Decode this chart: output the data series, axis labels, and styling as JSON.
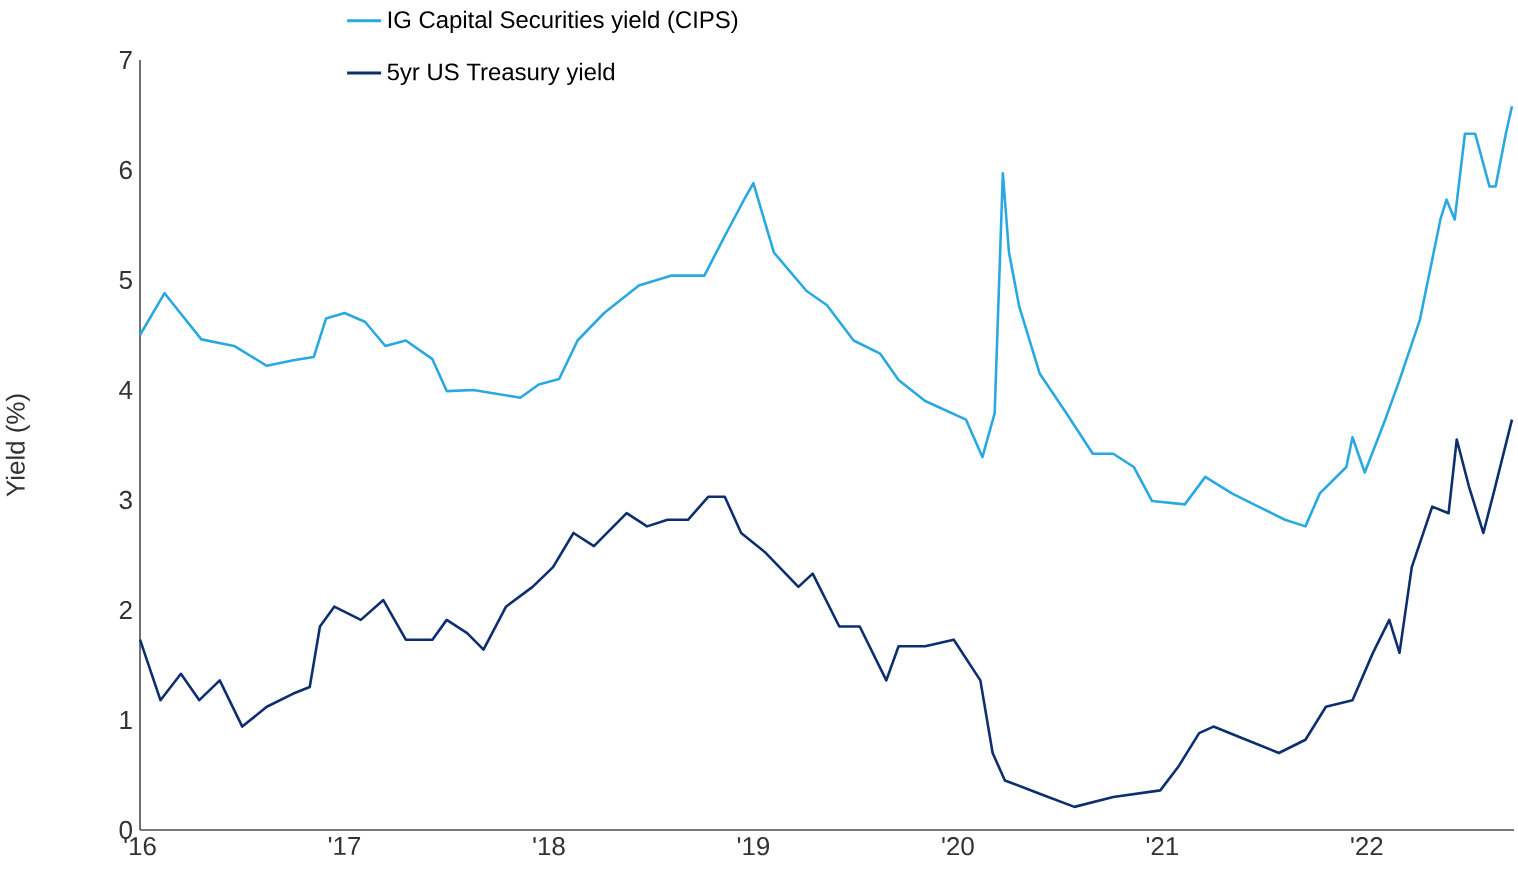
{
  "chart_data": {
    "type": "line",
    "ylabel": "Yield (%)",
    "xlim": [
      2016,
      2022.72
    ],
    "ylim": [
      0,
      7
    ],
    "xticks": [
      {
        "value": 2016,
        "label": "'16"
      },
      {
        "value": 2017,
        "label": "'17"
      },
      {
        "value": 2018,
        "label": "'18"
      },
      {
        "value": 2019,
        "label": "'19"
      },
      {
        "value": 2020,
        "label": "'20"
      },
      {
        "value": 2021,
        "label": "'21"
      },
      {
        "value": 2022,
        "label": "'22"
      }
    ],
    "yticks": [
      0,
      1,
      2,
      3,
      4,
      5,
      6,
      7
    ],
    "grid": false,
    "legend": "top",
    "line_style": "solid",
    "marker": "none",
    "series": [
      {
        "name": "IG Capital Securities yield (CIPS)",
        "color": "#2aa8e0",
        "x": [
          2016.0,
          2016.12,
          2016.3,
          2016.46,
          2016.62,
          2016.75,
          2016.85,
          2016.91,
          2017.0,
          2017.1,
          2017.2,
          2017.3,
          2017.43,
          2017.5,
          2017.63,
          2017.86,
          2017.95,
          2018.05,
          2018.14,
          2018.27,
          2018.44,
          2018.6,
          2018.76,
          2018.86,
          2018.96,
          2019.0,
          2019.1,
          2019.26,
          2019.36,
          2019.49,
          2019.62,
          2019.71,
          2019.84,
          2020.04,
          2020.12,
          2020.18,
          2020.22,
          2020.25,
          2020.3,
          2020.4,
          2020.53,
          2020.66,
          2020.76,
          2020.86,
          2020.95,
          2021.11,
          2021.21,
          2021.34,
          2021.47,
          2021.6,
          2021.7,
          2021.77,
          2021.9,
          2021.93,
          2021.99,
          2022.09,
          2022.16,
          2022.26,
          2022.36,
          2022.39,
          2022.43,
          2022.48,
          2022.53,
          2022.6,
          2022.63,
          2022.68,
          2022.71
        ],
        "values": [
          4.5,
          4.88,
          4.46,
          4.4,
          4.22,
          4.27,
          4.3,
          4.65,
          4.7,
          4.62,
          4.4,
          4.45,
          4.28,
          3.99,
          4.0,
          3.93,
          4.05,
          4.1,
          4.45,
          4.7,
          4.95,
          5.04,
          5.04,
          5.4,
          5.75,
          5.88,
          5.25,
          4.9,
          4.77,
          4.45,
          4.33,
          4.09,
          3.9,
          3.73,
          3.39,
          3.79,
          5.97,
          5.25,
          4.76,
          4.15,
          3.79,
          3.42,
          3.42,
          3.3,
          2.99,
          2.96,
          3.21,
          3.06,
          2.94,
          2.82,
          2.76,
          3.06,
          3.3,
          3.57,
          3.25,
          3.73,
          4.09,
          4.64,
          5.55,
          5.73,
          5.55,
          6.33,
          6.33,
          5.85,
          5.85,
          6.33,
          6.58
        ]
      },
      {
        "name": "5yr US Treasury yield",
        "color": "#0d2f6e",
        "x": [
          2016.0,
          2016.1,
          2016.2,
          2016.29,
          2016.39,
          2016.5,
          2016.62,
          2016.75,
          2016.83,
          2016.88,
          2016.95,
          2017.08,
          2017.19,
          2017.3,
          2017.43,
          2017.5,
          2017.6,
          2017.68,
          2017.79,
          2017.92,
          2018.02,
          2018.12,
          2018.22,
          2018.38,
          2018.48,
          2018.58,
          2018.68,
          2018.78,
          2018.86,
          2018.94,
          2019.06,
          2019.22,
          2019.29,
          2019.42,
          2019.52,
          2019.65,
          2019.71,
          2019.84,
          2019.98,
          2020.11,
          2020.17,
          2020.23,
          2020.4,
          2020.57,
          2020.76,
          2020.99,
          2021.08,
          2021.18,
          2021.25,
          2021.41,
          2021.57,
          2021.7,
          2021.8,
          2021.93,
          2022.03,
          2022.11,
          2022.16,
          2022.22,
          2022.32,
          2022.4,
          2022.44,
          2022.5,
          2022.57,
          2022.62,
          2022.71
        ],
        "values": [
          1.73,
          1.18,
          1.42,
          1.18,
          1.36,
          0.94,
          1.12,
          1.24,
          1.3,
          1.85,
          2.03,
          1.91,
          2.09,
          1.73,
          1.73,
          1.91,
          1.79,
          1.64,
          2.03,
          2.21,
          2.39,
          2.7,
          2.58,
          2.88,
          2.76,
          2.82,
          2.82,
          3.03,
          3.03,
          2.7,
          2.52,
          2.21,
          2.33,
          1.85,
          1.85,
          1.36,
          1.67,
          1.67,
          1.73,
          1.36,
          0.7,
          0.45,
          0.33,
          0.21,
          0.3,
          0.36,
          0.58,
          0.88,
          0.94,
          0.82,
          0.7,
          0.82,
          1.12,
          1.18,
          1.61,
          1.91,
          1.61,
          2.39,
          2.94,
          2.88,
          3.55,
          3.12,
          2.7,
          3.06,
          3.73
        ]
      }
    ]
  }
}
